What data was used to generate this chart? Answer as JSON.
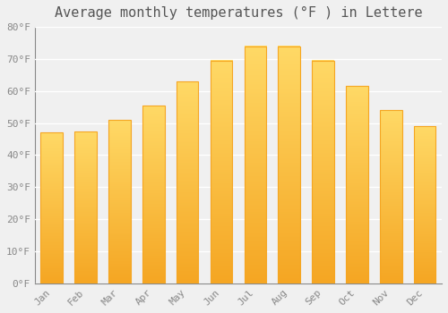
{
  "title": "Average monthly temperatures (°F ) in Lettere",
  "months": [
    "Jan",
    "Feb",
    "Mar",
    "Apr",
    "May",
    "Jun",
    "Jul",
    "Aug",
    "Sep",
    "Oct",
    "Nov",
    "Dec"
  ],
  "values": [
    47.0,
    47.3,
    51.0,
    55.5,
    63.0,
    69.5,
    74.0,
    74.0,
    69.5,
    61.5,
    54.0,
    49.0
  ],
  "bar_color_bottom": "#F5A623",
  "bar_color_top": "#FFD966",
  "bar_edge_color": "#F5A623",
  "ylim": [
    0,
    80
  ],
  "yticks": [
    0,
    10,
    20,
    30,
    40,
    50,
    60,
    70,
    80
  ],
  "ytick_labels": [
    "0°F",
    "10°F",
    "20°F",
    "30°F",
    "40°F",
    "50°F",
    "60°F",
    "70°F",
    "80°F"
  ],
  "background_color": "#F0F0F0",
  "grid_color": "#FFFFFF",
  "title_fontsize": 11,
  "tick_fontsize": 8,
  "bar_width": 0.65
}
